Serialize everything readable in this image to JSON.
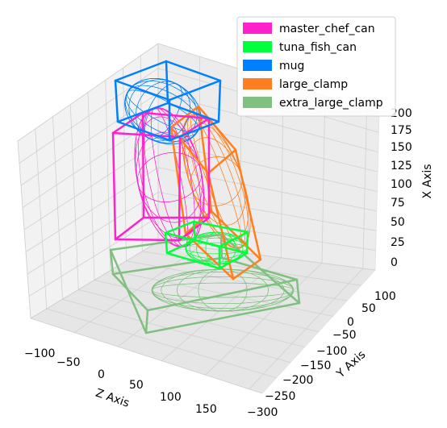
{
  "chart_data": {
    "type": "3d-wireframe",
    "axes": {
      "x": {
        "label": "X Axis",
        "ticks": [
          "0",
          "25",
          "50",
          "75",
          "100",
          "125",
          "150",
          "175",
          "200"
        ]
      },
      "y": {
        "label": "Y Axis",
        "ticks": [
          "100",
          "50",
          "0",
          "−50",
          "−100",
          "−150",
          "−200",
          "−250",
          "−300"
        ]
      },
      "z": {
        "label": "Z Axis",
        "ticks": [
          "−100",
          "−50",
          "0",
          "50",
          "100",
          "150"
        ]
      }
    },
    "legend": {
      "placement": "top-right",
      "entries": [
        {
          "name": "master_chef_can",
          "color": "#ff22cc"
        },
        {
          "name": "tuna_fish_can",
          "color": "#00ff3c"
        },
        {
          "name": "mug",
          "color": "#0080ff"
        },
        {
          "name": "large_clamp",
          "color": "#ff7f20"
        },
        {
          "name": "extra_large_clamp",
          "color": "#80c080"
        }
      ]
    },
    "objects": [
      "master_chef_can",
      "tuna_fish_can",
      "mug",
      "large_clamp",
      "extra_large_clamp"
    ],
    "grid": true
  }
}
